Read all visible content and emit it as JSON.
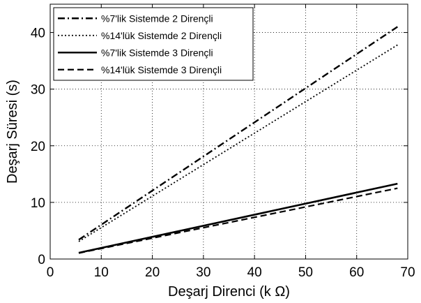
{
  "chart_data": {
    "type": "line",
    "xlabel": "Deşarj Direnci (k Ω)",
    "ylabel": "Deşarj Süresi (s)",
    "xlim": [
      0,
      70
    ],
    "ylim": [
      0,
      45
    ],
    "xticks": [
      0,
      10,
      20,
      30,
      40,
      50,
      60,
      70
    ],
    "yticks": [
      0,
      10,
      20,
      30,
      40
    ],
    "grid": "dotted",
    "legend_position": "top-left",
    "series": [
      {
        "name": "%7'lik Sistemde 2 Dirençli",
        "style": "dashdot",
        "x": [
          5.6,
          68
        ],
        "y": [
          3.4,
          41.0
        ]
      },
      {
        "name": "%14'lük Sistemde 2 Dirençli",
        "style": "dotted",
        "x": [
          5.6,
          68
        ],
        "y": [
          3.1,
          37.8
        ]
      },
      {
        "name": "%7'lik Sistemde 3 Dirençli",
        "style": "solid",
        "x": [
          5.6,
          68
        ],
        "y": [
          1.1,
          13.3
        ]
      },
      {
        "name": "%14'lük Sistemde 3 Dirençli",
        "style": "dashed",
        "x": [
          5.6,
          68
        ],
        "y": [
          1.05,
          12.5
        ]
      }
    ],
    "colors": {
      "line": "#000000",
      "grid": "#000000",
      "background": "#ffffff"
    }
  }
}
